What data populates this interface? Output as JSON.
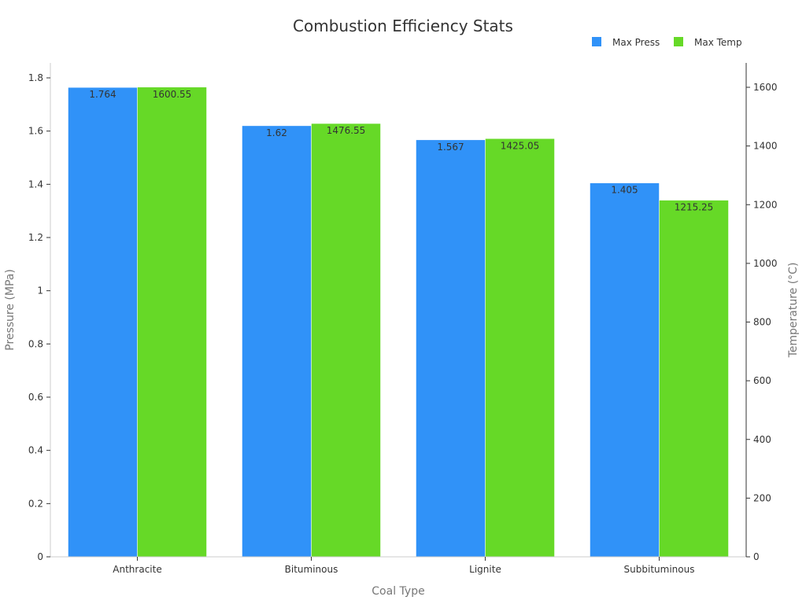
{
  "chart_data": {
    "type": "bar",
    "title": "Combustion Efficiency Stats",
    "xlabel": "Coal Type",
    "ylabel": "Pressure (MPa)",
    "ylabel_right": "Temperature (°C)",
    "categories": [
      "Anthracite",
      "Bituminous",
      "Lignite",
      "Subbituminous"
    ],
    "series": [
      {
        "name": "Max Press",
        "axis": "left",
        "color": "#3092f8",
        "values": [
          1.764,
          1.62,
          1.567,
          1.405
        ],
        "labels": [
          "1.764",
          "1.62",
          "1.567",
          "1.405"
        ]
      },
      {
        "name": "Max Temp",
        "axis": "right",
        "color": "#66d927",
        "values": [
          1600.55,
          1476.55,
          1425.05,
          1215.25
        ],
        "labels": [
          "1600.55",
          "1476.55",
          "1425.05",
          "1215.25"
        ]
      }
    ],
    "ylim_left": [
      0,
      1.8
    ],
    "yticks_left": [
      "0",
      "0.2",
      "0.4",
      "0.6",
      "0.8",
      "1",
      "1.2",
      "1.4",
      "1.6",
      "1.8"
    ],
    "ylim_right": [
      0,
      1600
    ],
    "yticks_right": [
      "0",
      "200",
      "400",
      "600",
      "800",
      "1000",
      "1200",
      "1400",
      "1600"
    ],
    "legend_position": "top-right",
    "grid": false
  }
}
